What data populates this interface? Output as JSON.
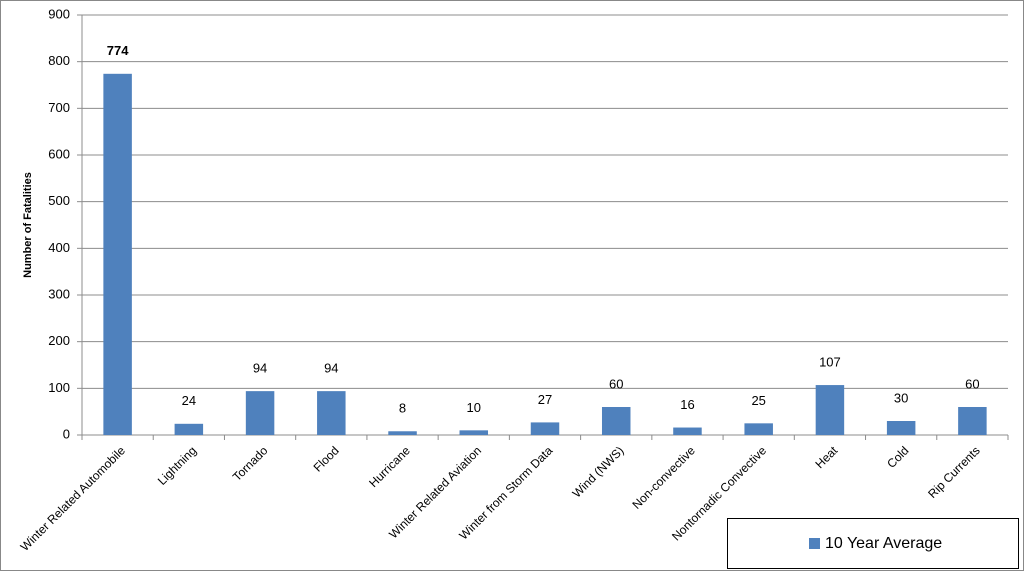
{
  "chart_data": {
    "type": "bar",
    "y_label": "Number of Fatalities",
    "categories": [
      "Winter Related Automobile",
      "Lightning",
      "Tornado",
      "Flood",
      "Hurricane",
      "Winter Related Aviation",
      "Winter from Storm Data",
      "Wind (NWS)",
      "Non-convective",
      "Nontornadic Convective",
      "Heat",
      "Cold",
      "Rip Currents"
    ],
    "series": [
      {
        "name": "10 Year Average",
        "color": "#4f81bd",
        "values": [
          774,
          24,
          94,
          94,
          8,
          10,
          27,
          60,
          16,
          25,
          107,
          30,
          60
        ]
      }
    ],
    "ylim": [
      0,
      900
    ],
    "yticks": [
      0,
      100,
      200,
      300,
      400,
      500,
      600,
      700,
      800,
      900
    ],
    "grid": true,
    "legend": "bottom-right",
    "data_labels": true
  }
}
